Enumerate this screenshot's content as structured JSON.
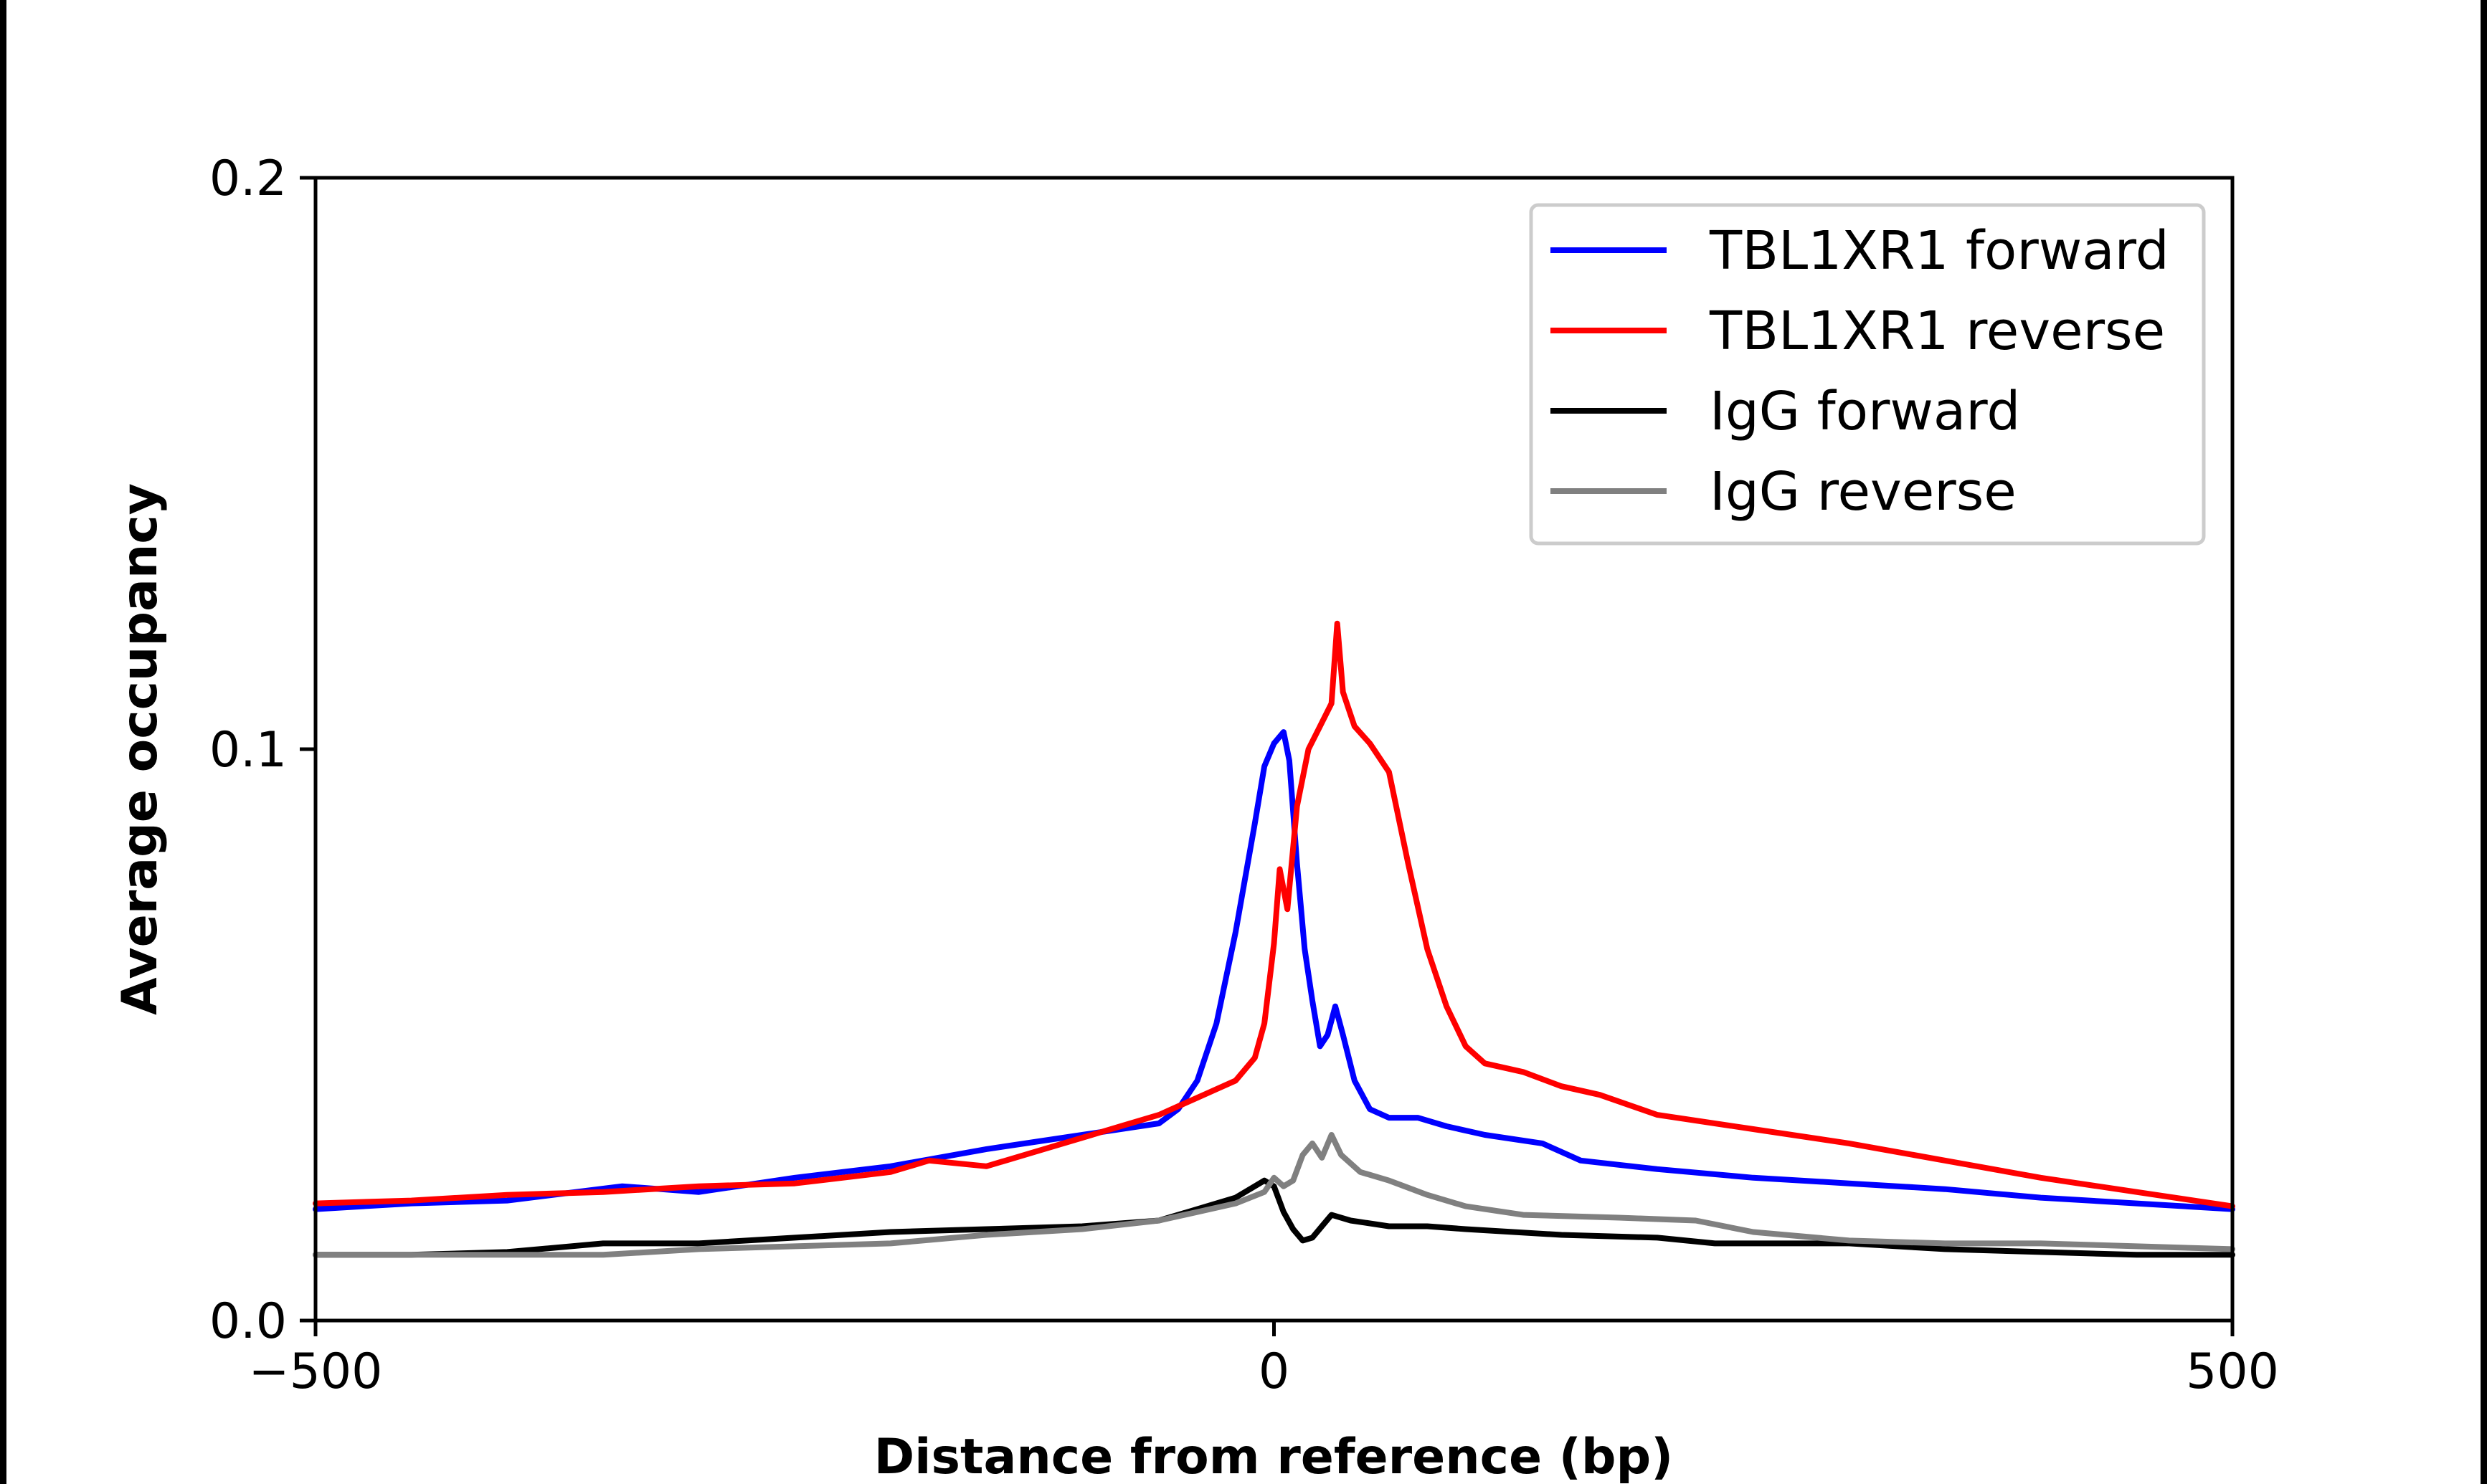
{
  "chart_data": {
    "type": "line",
    "title": "",
    "xlabel": "Distance from reference (bp)",
    "ylabel": "Average occupancy",
    "xlim": [
      -500,
      500
    ],
    "ylim": [
      0.0,
      0.2
    ],
    "x_ticks": [
      {
        "value": -500,
        "label": "−500"
      },
      {
        "value": 0,
        "label": "0"
      },
      {
        "value": 500,
        "label": "500"
      }
    ],
    "y_ticks": [
      {
        "value": 0.0,
        "label": "0.0"
      },
      {
        "value": 0.1,
        "label": "0.1"
      },
      {
        "value": 0.2,
        "label": "0.2"
      }
    ],
    "grid": false,
    "legend_position": "top-right",
    "series": [
      {
        "name": "TBL1XR1 forward",
        "color": "#0000ff",
        "points": [
          [
            -500,
            0.0195
          ],
          [
            -450,
            0.0205
          ],
          [
            -400,
            0.021
          ],
          [
            -340,
            0.0235
          ],
          [
            -300,
            0.0225
          ],
          [
            -250,
            0.025
          ],
          [
            -200,
            0.027
          ],
          [
            -150,
            0.03
          ],
          [
            -100,
            0.0325
          ],
          [
            -60,
            0.0345
          ],
          [
            -50,
            0.037
          ],
          [
            -40,
            0.042
          ],
          [
            -30,
            0.052
          ],
          [
            -20,
            0.068
          ],
          [
            -10,
            0.087
          ],
          [
            -5,
            0.097
          ],
          [
            0,
            0.101
          ],
          [
            5,
            0.103
          ],
          [
            8,
            0.098
          ],
          [
            12,
            0.08
          ],
          [
            16,
            0.065
          ],
          [
            20,
            0.056
          ],
          [
            24,
            0.048
          ],
          [
            28,
            0.05
          ],
          [
            32,
            0.055
          ],
          [
            36,
            0.05
          ],
          [
            42,
            0.042
          ],
          [
            50,
            0.037
          ],
          [
            60,
            0.0355
          ],
          [
            75,
            0.0355
          ],
          [
            90,
            0.034
          ],
          [
            110,
            0.0325
          ],
          [
            140,
            0.031
          ],
          [
            160,
            0.028
          ],
          [
            200,
            0.0265
          ],
          [
            250,
            0.025
          ],
          [
            300,
            0.024
          ],
          [
            350,
            0.023
          ],
          [
            400,
            0.0215
          ],
          [
            450,
            0.0205
          ],
          [
            500,
            0.0195
          ]
        ]
      },
      {
        "name": "TBL1XR1 reverse",
        "color": "#ff0000",
        "points": [
          [
            -500,
            0.0205
          ],
          [
            -450,
            0.021
          ],
          [
            -400,
            0.022
          ],
          [
            -350,
            0.0225
          ],
          [
            -300,
            0.0235
          ],
          [
            -250,
            0.024
          ],
          [
            -200,
            0.026
          ],
          [
            -180,
            0.028
          ],
          [
            -150,
            0.027
          ],
          [
            -120,
            0.03
          ],
          [
            -100,
            0.032
          ],
          [
            -80,
            0.034
          ],
          [
            -60,
            0.036
          ],
          [
            -40,
            0.039
          ],
          [
            -20,
            0.042
          ],
          [
            -10,
            0.046
          ],
          [
            -5,
            0.052
          ],
          [
            0,
            0.066
          ],
          [
            3,
            0.079
          ],
          [
            7,
            0.072
          ],
          [
            12,
            0.09
          ],
          [
            18,
            0.1
          ],
          [
            24,
            0.104
          ],
          [
            30,
            0.108
          ],
          [
            33,
            0.122
          ],
          [
            36,
            0.11
          ],
          [
            42,
            0.104
          ],
          [
            50,
            0.101
          ],
          [
            60,
            0.096
          ],
          [
            70,
            0.08
          ],
          [
            80,
            0.065
          ],
          [
            90,
            0.055
          ],
          [
            100,
            0.048
          ],
          [
            110,
            0.045
          ],
          [
            130,
            0.0435
          ],
          [
            150,
            0.041
          ],
          [
            170,
            0.0395
          ],
          [
            200,
            0.036
          ],
          [
            250,
            0.0335
          ],
          [
            300,
            0.031
          ],
          [
            350,
            0.028
          ],
          [
            400,
            0.025
          ],
          [
            450,
            0.0225
          ],
          [
            500,
            0.02
          ]
        ]
      },
      {
        "name": "IgG forward",
        "color": "#000000",
        "points": [
          [
            -500,
            0.0115
          ],
          [
            -450,
            0.0115
          ],
          [
            -400,
            0.012
          ],
          [
            -350,
            0.0135
          ],
          [
            -300,
            0.0135
          ],
          [
            -250,
            0.0145
          ],
          [
            -200,
            0.0155
          ],
          [
            -150,
            0.016
          ],
          [
            -100,
            0.0165
          ],
          [
            -60,
            0.0175
          ],
          [
            -40,
            0.0195
          ],
          [
            -20,
            0.0215
          ],
          [
            -5,
            0.0245
          ],
          [
            0,
            0.0235
          ],
          [
            5,
            0.019
          ],
          [
            10,
            0.016
          ],
          [
            15,
            0.014
          ],
          [
            20,
            0.0145
          ],
          [
            25,
            0.0165
          ],
          [
            30,
            0.0185
          ],
          [
            40,
            0.0175
          ],
          [
            60,
            0.0165
          ],
          [
            80,
            0.0165
          ],
          [
            100,
            0.016
          ],
          [
            150,
            0.015
          ],
          [
            200,
            0.0145
          ],
          [
            230,
            0.0135
          ],
          [
            300,
            0.0135
          ],
          [
            350,
            0.0125
          ],
          [
            400,
            0.012
          ],
          [
            450,
            0.0115
          ],
          [
            500,
            0.0115
          ]
        ]
      },
      {
        "name": "IgG reverse",
        "color": "#808080",
        "points": [
          [
            -500,
            0.0115
          ],
          [
            -450,
            0.0115
          ],
          [
            -400,
            0.0115
          ],
          [
            -350,
            0.0115
          ],
          [
            -300,
            0.0125
          ],
          [
            -250,
            0.013
          ],
          [
            -200,
            0.0135
          ],
          [
            -150,
            0.015
          ],
          [
            -100,
            0.016
          ],
          [
            -60,
            0.0175
          ],
          [
            -40,
            0.019
          ],
          [
            -20,
            0.0205
          ],
          [
            -5,
            0.0225
          ],
          [
            0,
            0.025
          ],
          [
            5,
            0.0235
          ],
          [
            10,
            0.0245
          ],
          [
            15,
            0.029
          ],
          [
            20,
            0.031
          ],
          [
            25,
            0.0285
          ],
          [
            30,
            0.0325
          ],
          [
            35,
            0.029
          ],
          [
            45,
            0.026
          ],
          [
            60,
            0.0245
          ],
          [
            80,
            0.022
          ],
          [
            100,
            0.02
          ],
          [
            130,
            0.0185
          ],
          [
            180,
            0.018
          ],
          [
            220,
            0.0175
          ],
          [
            250,
            0.0155
          ],
          [
            300,
            0.014
          ],
          [
            350,
            0.0135
          ],
          [
            400,
            0.0135
          ],
          [
            450,
            0.013
          ],
          [
            500,
            0.0125
          ]
        ]
      }
    ]
  }
}
